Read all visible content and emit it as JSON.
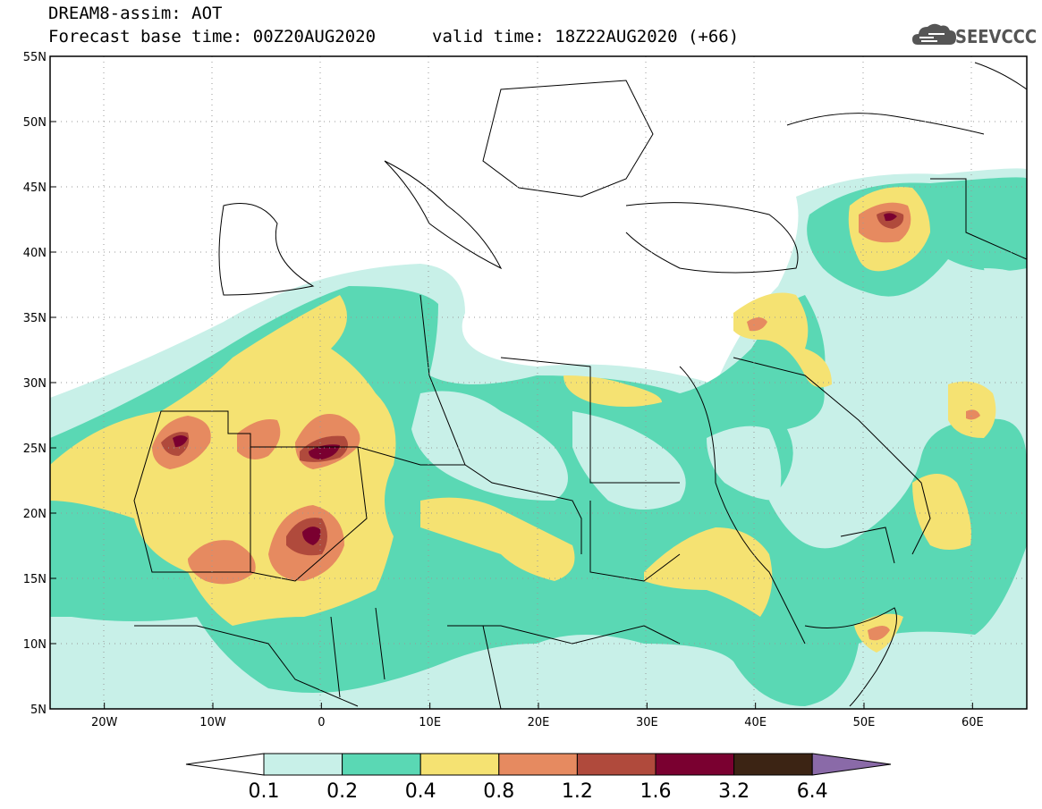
{
  "header": {
    "title": "DREAM8-assim: AOT",
    "base_time": "Forecast base time: 00Z20AUG2020",
    "valid_time": "valid time: 18Z22AUG2020 (+66)",
    "logo_text": "SEEVCCC",
    "logo_icon": "cloud-icon"
  },
  "map": {
    "lon_range": [
      -25,
      65
    ],
    "lat_range": [
      5,
      55
    ],
    "lon_ticks": [
      "20W",
      "10W",
      "0",
      "10E",
      "20E",
      "30E",
      "40E",
      "50E",
      "60E"
    ],
    "lat_ticks": [
      "5N",
      "10N",
      "15N",
      "20N",
      "25N",
      "30N",
      "35N",
      "40N",
      "45N",
      "50N",
      "55N"
    ],
    "grid": "dotted"
  },
  "colorbar": {
    "labels": [
      "0.1",
      "0.2",
      "0.4",
      "0.8",
      "1.2",
      "1.6",
      "3.2",
      "6.4"
    ],
    "colors": [
      "#ffffff",
      "#c8f0e8",
      "#5ad8b4",
      "#f5e272",
      "#e68a60",
      "#b04a3c",
      "#7a0030",
      "#3c2414",
      "#8a6aa8"
    ]
  }
}
